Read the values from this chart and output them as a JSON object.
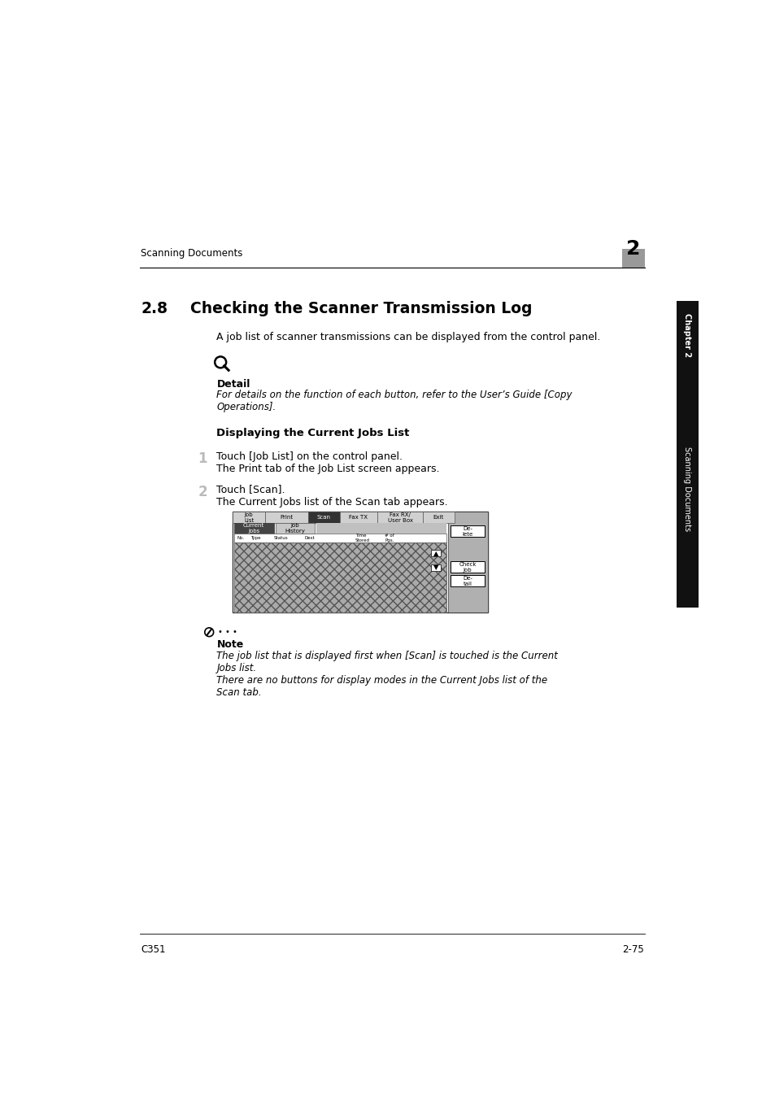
{
  "page_bg": "#ffffff",
  "header_text": "Scanning Documents",
  "header_number": "2",
  "section_number": "2.8",
  "section_title": "Checking the Scanner Transmission Log",
  "intro_text": "A job list of scanner transmissions can be displayed from the control panel.",
  "detail_label": "Detail",
  "detail_text": "For details on the function of each button, refer to the User’s Guide [Copy\nOperations].",
  "subsection_title": "Displaying the Current Jobs List",
  "step1_num": "1",
  "step1_text": "Touch [Job List] on the control panel.",
  "step1_sub": "The Print tab of the Job List screen appears.",
  "step2_num": "2",
  "step2_text": "Touch [Scan].",
  "step2_sub": "The Current Jobs list of the Scan tab appears.",
  "note_label": "Note",
  "note_text1": "The job list that is displayed first when [Scan] is touched is the Current\nJobs list.",
  "note_text2": "There are no buttons for display modes in the Current Jobs list of the\nScan tab.",
  "footer_left": "C351",
  "footer_right": "2-75",
  "sidebar_text": "Scanning Documents",
  "chapter_label": "Chapter 2"
}
